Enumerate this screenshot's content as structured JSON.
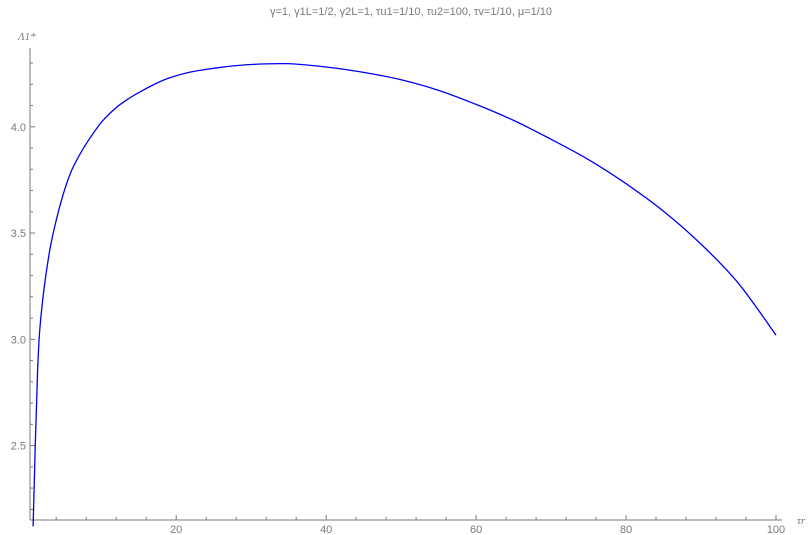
{
  "chart_data": {
    "type": "line",
    "title": "γ=1, γ1L=1/2, γ2L=1, τu1=1/10, τu2=100, τv=1/10, μ=1/10",
    "xlabel": "τr",
    "ylabel": "Λ1*",
    "xlim": [
      0.5,
      100
    ],
    "ylim": [
      2.15,
      4.3
    ],
    "x_ticks": [
      20,
      40,
      60,
      80,
      100
    ],
    "x_tick_labels": [
      "20",
      "40",
      "60",
      "80",
      "100"
    ],
    "y_ticks": [
      2.5,
      3.0,
      3.5,
      4.0
    ],
    "y_tick_labels": [
      "2.5",
      "3.0",
      "3.5",
      "4.0"
    ],
    "grid": false,
    "colors": {
      "line": "#0000ee",
      "axis": "#7a7a7a"
    },
    "series": [
      {
        "x": [
          0.91,
          1.5,
          2,
          3,
          4,
          5,
          6,
          7,
          8,
          10,
          12,
          14,
          16,
          18,
          20,
          22,
          24,
          26,
          28,
          30,
          32,
          34,
          36,
          40,
          45,
          50,
          55,
          60,
          65,
          70,
          75,
          80,
          85,
          90,
          95,
          100
        ],
        "y": [
          2.12,
          2.84,
          3.12,
          3.39,
          3.56,
          3.69,
          3.79,
          3.86,
          3.92,
          4.02,
          4.09,
          4.14,
          4.18,
          4.215,
          4.24,
          4.258,
          4.27,
          4.28,
          4.288,
          4.293,
          4.296,
          4.297,
          4.295,
          4.281,
          4.256,
          4.221,
          4.171,
          4.105,
          4.03,
          3.941,
          3.845,
          3.732,
          3.603,
          3.448,
          3.263,
          3.02
        ]
      }
    ]
  }
}
